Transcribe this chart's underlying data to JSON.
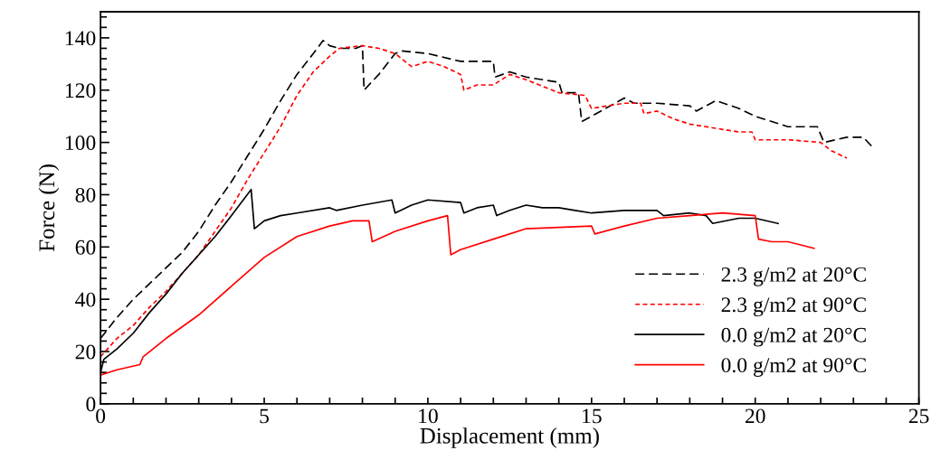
{
  "chart_data": {
    "type": "line",
    "xlabel": "Displacement (mm)",
    "ylabel": "Force (N)",
    "xlim": [
      0,
      25
    ],
    "ylim": [
      0,
      150
    ],
    "xticks": [
      0,
      {
        "value": 1,
        "label": null
      },
      {
        "value": 2,
        "label": null
      },
      {
        "value": 3,
        "label": null
      },
      {
        "value": 4,
        "label": null
      },
      5,
      {
        "value": 6,
        "label": null
      },
      {
        "value": 7,
        "label": null
      },
      {
        "value": 8,
        "label": null
      },
      {
        "value": 9,
        "label": null
      },
      10,
      {
        "value": 11,
        "label": null
      },
      {
        "value": 12,
        "label": null
      },
      {
        "value": 13,
        "label": null
      },
      {
        "value": 14,
        "label": null
      },
      15,
      {
        "value": 16,
        "label": null
      },
      {
        "value": 17,
        "label": null
      },
      {
        "value": 18,
        "label": null
      },
      {
        "value": 19,
        "label": null
      },
      20,
      {
        "value": 21,
        "label": null
      },
      {
        "value": 22,
        "label": null
      },
      {
        "value": 23,
        "label": null
      },
      {
        "value": 24,
        "label": null
      },
      25
    ],
    "yticks": [
      0,
      {
        "value": 4,
        "label": null
      },
      {
        "value": 8,
        "label": null
      },
      {
        "value": 12,
        "label": null
      },
      {
        "value": 16,
        "label": null
      },
      20,
      {
        "value": 24,
        "label": null
      },
      {
        "value": 28,
        "label": null
      },
      {
        "value": 32,
        "label": null
      },
      {
        "value": 36,
        "label": null
      },
      40,
      {
        "value": 44,
        "label": null
      },
      {
        "value": 48,
        "label": null
      },
      {
        "value": 52,
        "label": null
      },
      {
        "value": 56,
        "label": null
      },
      60,
      {
        "value": 64,
        "label": null
      },
      {
        "value": 68,
        "label": null
      },
      {
        "value": 72,
        "label": null
      },
      {
        "value": 76,
        "label": null
      },
      80,
      {
        "value": 84,
        "label": null
      },
      {
        "value": 88,
        "label": null
      },
      {
        "value": 92,
        "label": null
      },
      {
        "value": 96,
        "label": null
      },
      100,
      {
        "value": 104,
        "label": null
      },
      {
        "value": 108,
        "label": null
      },
      {
        "value": 112,
        "label": null
      },
      {
        "value": 116,
        "label": null
      },
      120,
      {
        "value": 124,
        "label": null
      },
      {
        "value": 128,
        "label": null
      },
      {
        "value": 132,
        "label": null
      },
      {
        "value": 136,
        "label": null
      },
      140,
      {
        "value": 144,
        "label": null
      },
      {
        "value": 148,
        "label": null
      }
    ],
    "grid": false,
    "legend": "bottom right",
    "marker": "none",
    "series": [
      {
        "name": "2.3 g/m2 at 20°C",
        "color": "#000000",
        "line_style": "dashed",
        "x": [
          0,
          0.5,
          1,
          2,
          2.5,
          3,
          3.5,
          4,
          4.5,
          5,
          5.5,
          6,
          6.5,
          6.8,
          7,
          7.3,
          7.8,
          8,
          8.05,
          8.5,
          9,
          9.2,
          10,
          11,
          12,
          12.05,
          12.5,
          13,
          14,
          14.1,
          14.6,
          14.7,
          15,
          16,
          16.3,
          17,
          18,
          18.2,
          18.8,
          19.5,
          20,
          21,
          21.9,
          22.1,
          22.8,
          23.3,
          23.6
        ],
        "values": [
          25,
          33,
          40,
          52,
          58,
          66,
          76,
          85,
          95,
          105,
          116,
          126,
          134,
          139,
          137,
          136,
          136,
          137,
          120,
          126,
          134,
          135,
          134,
          131,
          131,
          125,
          127,
          125,
          123,
          119,
          119,
          108,
          110,
          117,
          115,
          115,
          114,
          112,
          116,
          113,
          110,
          106,
          106,
          100,
          102,
          102,
          98
        ]
      },
      {
        "name": "2.3 g/m2 at 90°C",
        "color": "#ff0000",
        "line_style": "dotted",
        "x": [
          0,
          0.5,
          1,
          1.5,
          2,
          2.5,
          3,
          3.5,
          4,
          4.5,
          5,
          5.5,
          6,
          6.5,
          7,
          7.3,
          8,
          8.5,
          9,
          9.5,
          10,
          10.5,
          11,
          11.1,
          11.5,
          12,
          12.5,
          13,
          14,
          14.8,
          15,
          16,
          16.5,
          16.6,
          17,
          17.5,
          18,
          18.5,
          19.5,
          19.9,
          20,
          21,
          22,
          22.3,
          22.8
        ],
        "values": [
          18,
          25,
          30,
          37,
          43,
          50,
          57,
          66,
          75,
          86,
          96,
          106,
          118,
          127,
          133,
          136,
          137,
          136,
          134,
          129,
          131,
          129,
          126,
          120,
          122,
          122,
          126,
          124,
          119,
          118,
          113,
          115,
          115,
          111,
          112,
          109,
          107,
          106,
          104,
          104,
          101,
          101,
          100,
          97,
          94
        ]
      },
      {
        "name": "0.0 g/m2 at 20°C",
        "color": "#000000",
        "line_style": "solid",
        "x": [
          0,
          0.1,
          0.5,
          1,
          1.5,
          2,
          2.5,
          3,
          3.5,
          4,
          4.6,
          4.7,
          5,
          5.5,
          6,
          7,
          7.2,
          8,
          8.9,
          9,
          9.5,
          10,
          11,
          11.1,
          11.5,
          12,
          12.1,
          12.5,
          13,
          13.5,
          14,
          14.5,
          15,
          16,
          17,
          17.2,
          18,
          18.5,
          18.7,
          19.5,
          20,
          20.7
        ],
        "values": [
          12,
          17,
          21,
          27,
          35,
          42,
          50,
          57,
          64,
          72,
          82,
          67,
          70,
          72,
          73,
          75,
          74,
          76,
          78,
          73,
          76,
          78,
          77,
          73,
          75,
          76,
          72,
          74,
          76,
          75,
          75,
          74,
          73,
          74,
          74,
          72,
          73,
          72,
          69,
          71,
          71,
          69
        ]
      },
      {
        "name": "0.0 g/m2 at 90°C",
        "color": "#ff0000",
        "line_style": "solid",
        "x": [
          0,
          0.5,
          1.2,
          1.3,
          2,
          3,
          4,
          5,
          6,
          7,
          7.7,
          8.2,
          8.3,
          9,
          10,
          10.6,
          10.7,
          11,
          12,
          13,
          14,
          15,
          15.1,
          16,
          17,
          18,
          19,
          20,
          20.1,
          20.5,
          21,
          21.8
        ],
        "values": [
          11,
          13,
          15,
          18,
          25,
          34,
          45,
          56,
          64,
          68,
          70,
          70,
          62,
          66,
          70,
          72,
          57,
          59,
          63,
          67,
          67.5,
          68,
          65,
          68,
          71,
          72,
          73,
          72,
          63,
          62,
          62,
          59.5
        ]
      }
    ]
  }
}
